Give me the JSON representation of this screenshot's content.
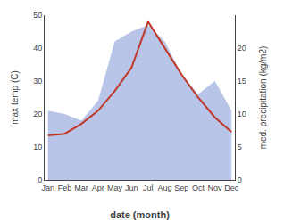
{
  "chart_data": {
    "type": "combo",
    "xlabel": "date (month)",
    "ylabel": "max temp (C)",
    "y2label": "med. precipitation (kg/m2)",
    "categories": [
      "Jan",
      "Feb",
      "Mar",
      "Apr",
      "May",
      "Jun",
      "Jul",
      "Aug",
      "Sep",
      "Oct",
      "Nov",
      "Dec"
    ],
    "series": [
      {
        "type": "area",
        "axis": "y2",
        "color": "#b8c4e8",
        "values": [
          10.5,
          10.0,
          9.0,
          12.0,
          21.0,
          22.5,
          23.5,
          21.0,
          16.0,
          13.0,
          15.0,
          10.5
        ]
      },
      {
        "type": "line",
        "color": "#c0392b",
        "values": [
          13.5,
          14.0,
          17.0,
          21.0,
          27.0,
          34.0,
          48.0,
          40.0,
          32.0,
          25.0,
          19.0,
          14.5
        ]
      }
    ],
    "ylim": [
      0,
      50
    ],
    "yticks": [
      0,
      10,
      20,
      30,
      40,
      50
    ],
    "y2lim": [
      0,
      25
    ],
    "y2ticks": [
      0,
      5,
      10,
      15,
      20
    ],
    "grid": false
  }
}
